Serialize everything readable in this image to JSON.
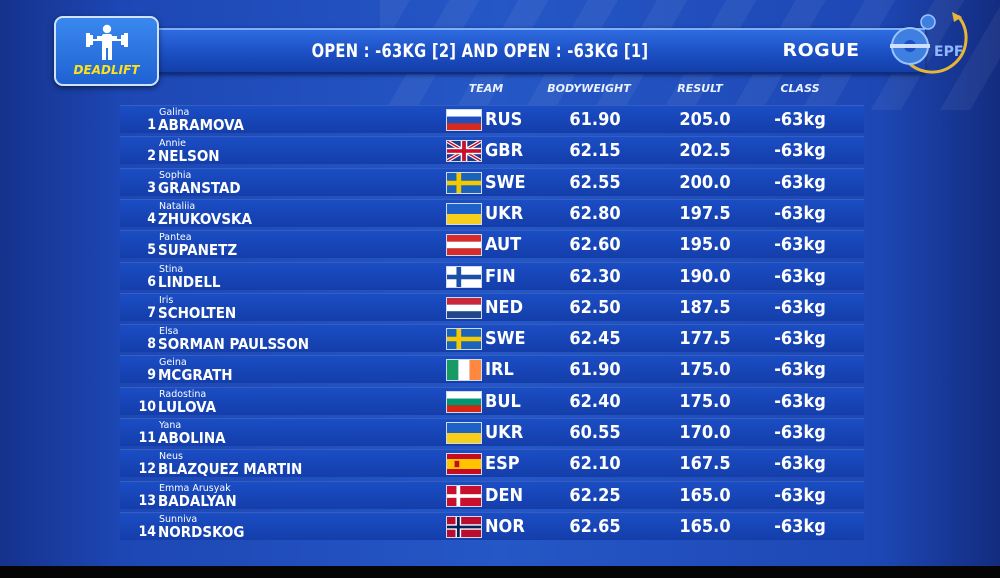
{
  "event": {
    "label": "DEADLIFT",
    "icon": "weightlifter-icon",
    "accent_color": "#ffe21a"
  },
  "header": {
    "title": "OPEN : -63KG [2] AND OPEN : -63KG [1]",
    "sponsor": "ROGUE",
    "federation_logo_text": "EPF"
  },
  "columns": {
    "team": "TEAM",
    "bodyweight": "BODYWEIGHT",
    "result": "RESULT",
    "class": "CLASS"
  },
  "rows": [
    {
      "rank": "1",
      "first": "Galina",
      "last": "ABRAMOVA",
      "team": "RUS",
      "bodyweight": "61.90",
      "result": "205.0",
      "class": "-63kg"
    },
    {
      "rank": "2",
      "first": "Annie",
      "last": "NELSON",
      "team": "GBR",
      "bodyweight": "62.15",
      "result": "202.5",
      "class": "-63kg"
    },
    {
      "rank": "3",
      "first": "Sophia",
      "last": "GRANSTAD",
      "team": "SWE",
      "bodyweight": "62.55",
      "result": "200.0",
      "class": "-63kg"
    },
    {
      "rank": "4",
      "first": "Nataliia",
      "last": "ZHUKOVSKA",
      "team": "UKR",
      "bodyweight": "62.80",
      "result": "197.5",
      "class": "-63kg"
    },
    {
      "rank": "5",
      "first": "Pantea",
      "last": "SUPANETZ",
      "team": "AUT",
      "bodyweight": "62.60",
      "result": "195.0",
      "class": "-63kg"
    },
    {
      "rank": "6",
      "first": "Stina",
      "last": "LINDELL",
      "team": "FIN",
      "bodyweight": "62.30",
      "result": "190.0",
      "class": "-63kg"
    },
    {
      "rank": "7",
      "first": "Iris",
      "last": "SCHOLTEN",
      "team": "NED",
      "bodyweight": "62.50",
      "result": "187.5",
      "class": "-63kg"
    },
    {
      "rank": "8",
      "first": "Elsa",
      "last": "SORMAN PAULSSON",
      "team": "SWE",
      "bodyweight": "62.45",
      "result": "177.5",
      "class": "-63kg"
    },
    {
      "rank": "9",
      "first": "Geina",
      "last": "MCGRATH",
      "team": "IRL",
      "bodyweight": "61.90",
      "result": "175.0",
      "class": "-63kg"
    },
    {
      "rank": "10",
      "first": "Radostina",
      "last": "LULOVA",
      "team": "BUL",
      "bodyweight": "62.40",
      "result": "175.0",
      "class": "-63kg"
    },
    {
      "rank": "11",
      "first": "Yana",
      "last": "ABOLINA",
      "team": "UKR",
      "bodyweight": "60.55",
      "result": "170.0",
      "class": "-63kg"
    },
    {
      "rank": "12",
      "first": "Neus",
      "last": "BLAZQUEZ MARTIN",
      "team": "ESP",
      "bodyweight": "62.10",
      "result": "167.5",
      "class": "-63kg"
    },
    {
      "rank": "13",
      "first": "Emma Arusyak",
      "last": "BADALYAN",
      "team": "DEN",
      "bodyweight": "62.25",
      "result": "165.0",
      "class": "-63kg"
    },
    {
      "rank": "14",
      "first": "Sunniva",
      "last": "NORDSKOG",
      "team": "NOR",
      "bodyweight": "62.65",
      "result": "165.0",
      "class": "-63kg"
    }
  ]
}
